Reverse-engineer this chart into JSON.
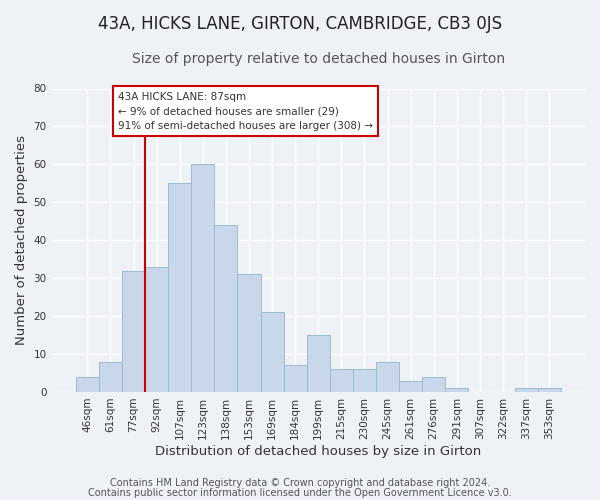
{
  "title": "43A, HICKS LANE, GIRTON, CAMBRIDGE, CB3 0JS",
  "subtitle": "Size of property relative to detached houses in Girton",
  "xlabel": "Distribution of detached houses by size in Girton",
  "ylabel": "Number of detached properties",
  "bar_color": "#c8d8ea",
  "bar_edge_color": "#9bbcce",
  "categories": [
    "46sqm",
    "61sqm",
    "77sqm",
    "92sqm",
    "107sqm",
    "123sqm",
    "138sqm",
    "153sqm",
    "169sqm",
    "184sqm",
    "199sqm",
    "215sqm",
    "230sqm",
    "245sqm",
    "261sqm",
    "276sqm",
    "291sqm",
    "307sqm",
    "322sqm",
    "337sqm",
    "353sqm"
  ],
  "values": [
    4,
    8,
    32,
    33,
    55,
    60,
    44,
    31,
    21,
    7,
    15,
    6,
    6,
    8,
    3,
    4,
    1,
    0,
    0,
    1,
    1
  ],
  "ylim": [
    0,
    80
  ],
  "yticks": [
    0,
    10,
    20,
    30,
    40,
    50,
    60,
    70,
    80
  ],
  "marker_label": "43A HICKS LANE: 87sqm",
  "annotation_line1": "← 9% of detached houses are smaller (29)",
  "annotation_line2": "91% of semi-detached houses are larger (308) →",
  "vline_color": "#cc0000",
  "footer1": "Contains HM Land Registry data © Crown copyright and database right 2024.",
  "footer2": "Contains public sector information licensed under the Open Government Licence v3.0.",
  "background_color": "#eef2f7",
  "grid_color": "#ffffff",
  "title_fontsize": 12,
  "subtitle_fontsize": 10,
  "axis_label_fontsize": 9.5,
  "tick_fontsize": 7.5,
  "footer_fontsize": 7,
  "annotation_fontsize": 7.5
}
